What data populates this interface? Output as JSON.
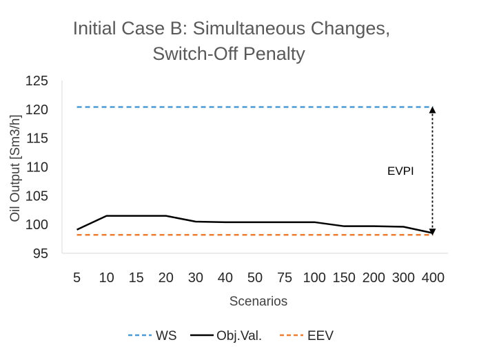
{
  "chart_data": {
    "type": "line",
    "title": [
      "Initial Case B: Simultaneous Changes,",
      "Switch-Off Penalty"
    ],
    "xlabel": "Scenarios",
    "ylabel": "Oil Output [Sm3/h]",
    "categories": [
      "5",
      "10",
      "15",
      "20",
      "30",
      "40",
      "50",
      "75",
      "100",
      "150",
      "200",
      "300",
      "400"
    ],
    "ylim": [
      95,
      125
    ],
    "yticks": [
      95,
      100,
      105,
      110,
      115,
      120,
      125
    ],
    "grid": false,
    "legend_position": "bottom",
    "series": [
      {
        "name": "WS",
        "style": "dashed",
        "color": "#4a9ad4",
        "values": [
          120.4,
          120.4,
          120.4,
          120.4,
          120.4,
          120.4,
          120.4,
          120.4,
          120.4,
          120.4,
          120.4,
          120.4,
          120.4
        ]
      },
      {
        "name": "Obj.Val.",
        "style": "solid",
        "color": "#000000",
        "values": [
          99.1,
          101.5,
          101.5,
          101.5,
          100.5,
          100.4,
          100.4,
          100.4,
          100.4,
          99.7,
          99.7,
          99.6,
          98.5
        ]
      },
      {
        "name": "EEV",
        "style": "dashed",
        "color": "#ed7d31",
        "values": [
          98.2,
          98.2,
          98.2,
          98.2,
          98.2,
          98.2,
          98.2,
          98.2,
          98.2,
          98.2,
          98.2,
          98.2,
          98.2
        ]
      }
    ],
    "annotations": [
      {
        "text": "EVPI",
        "arrow": "double-headed",
        "from_series": "WS",
        "to_series": "EEV",
        "at_category": "400"
      }
    ]
  }
}
